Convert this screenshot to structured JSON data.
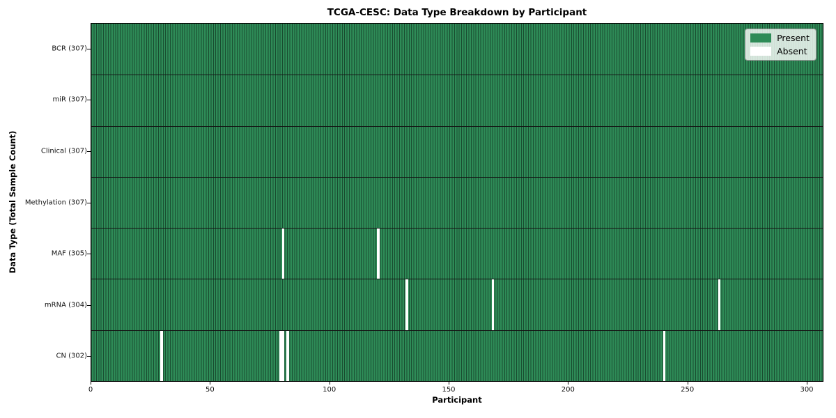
{
  "chart_data": {
    "type": "heatmap",
    "title": "TCGA-CESC: Data Type Breakdown by Participant",
    "xlabel": "Participant",
    "ylabel": "Data Type (Total Sample Count)",
    "xlim": [
      0,
      307
    ],
    "x_ticks": [
      0,
      50,
      100,
      150,
      200,
      250,
      300
    ],
    "n_participants": 307,
    "grid": true,
    "legend": {
      "position": "upper right",
      "entries": [
        {
          "label": "Present",
          "color": "#2e8b57"
        },
        {
          "label": "Absent",
          "color": "#ffffff"
        }
      ]
    },
    "colors": {
      "present": "#2e8b57",
      "absent": "#ffffff",
      "cell_border": "rgba(0,0,0,0.45)",
      "row_border": "#141414",
      "frame": "#000000"
    },
    "rows": [
      {
        "name": "BCR",
        "label": "BCR (307)",
        "present_count": 307,
        "absent_participants": []
      },
      {
        "name": "miR",
        "label": "miR (307)",
        "present_count": 307,
        "absent_participants": []
      },
      {
        "name": "Clinical",
        "label": "Clinical (307)",
        "present_count": 307,
        "absent_participants": []
      },
      {
        "name": "Methylation",
        "label": "Methylation (307)",
        "present_count": 307,
        "absent_participants": []
      },
      {
        "name": "MAF",
        "label": "MAF (305)",
        "present_count": 305,
        "absent_participants": [
          80,
          120
        ]
      },
      {
        "name": "mRNA",
        "label": "mRNA (304)",
        "present_count": 304,
        "absent_participants": [
          132,
          168,
          263
        ]
      },
      {
        "name": "CN",
        "label": "CN (302)",
        "present_count": 302,
        "absent_participants": [
          29,
          79,
          80,
          82,
          240
        ]
      }
    ]
  }
}
